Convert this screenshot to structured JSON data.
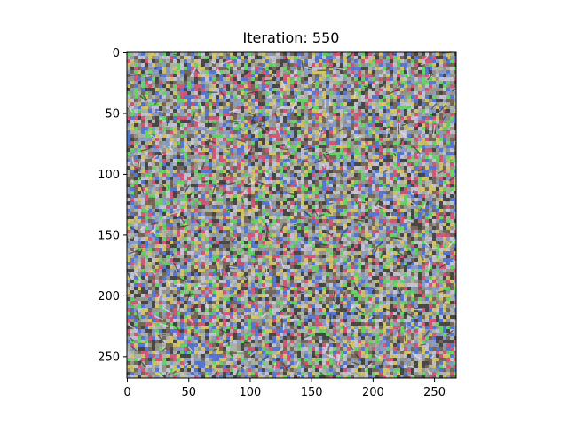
{
  "chart_data": {
    "type": "heatmap",
    "title": "Iteration: 550",
    "xlabel": "",
    "ylabel": "",
    "image_extent": {
      "width": 268,
      "height": 268
    },
    "x_ticks": [
      0,
      50,
      100,
      150,
      200,
      250
    ],
    "y_ticks": [
      0,
      50,
      100,
      150,
      200,
      250
    ],
    "xlim": [
      0,
      268
    ],
    "ylim": [
      268,
      0
    ],
    "grid": false,
    "y_axis_inverted": true,
    "content": "noisy high-frequency RGB texture image (neural network input optimization)",
    "palette": [
      "#9a9a8e",
      "#c8c6d4",
      "#4a4a48",
      "#d6c86a",
      "#5a7ad6",
      "#d65a7a",
      "#6ad66a",
      "#8ea0c8",
      "#7a6a5a",
      "#b0b8a8"
    ]
  }
}
